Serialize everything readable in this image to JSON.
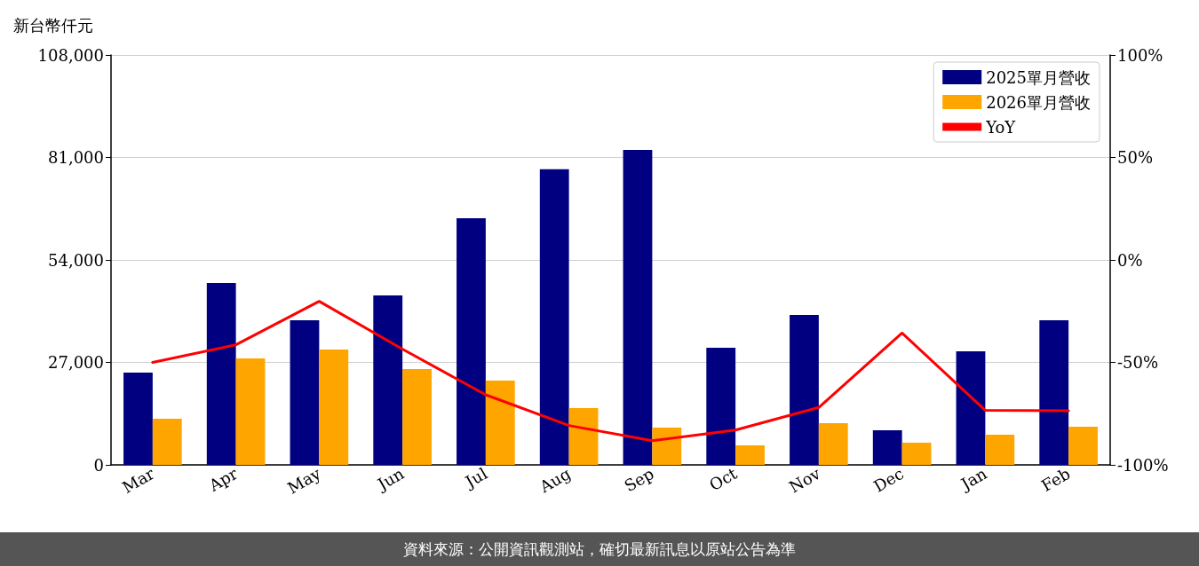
{
  "chart_data": {
    "type": "bar",
    "ylabel": "新台幣仟元",
    "categories": [
      "Mar",
      "Apr",
      "May",
      "Jun",
      "Jul",
      "Aug",
      "Sep",
      "Oct",
      "Nov",
      "Dec",
      "Jan",
      "Feb"
    ],
    "series": [
      {
        "name": "2025單月營收",
        "color": "#000080",
        "values": [
          24300,
          47900,
          38100,
          44650,
          65000,
          77900,
          83000,
          30860,
          39500,
          9100,
          29900,
          38100
        ]
      },
      {
        "name": "2026單月營收",
        "color": "#ffa500",
        "values": [
          12150,
          28050,
          30400,
          25250,
          22200,
          14960,
          9800,
          5140,
          11000,
          5850,
          7950,
          10050
        ]
      },
      {
        "name": "YoY",
        "type": "line",
        "axis": "y2",
        "color": "#ff0000",
        "marker": "none",
        "line_style": "solid",
        "values": [
          -50,
          -41.4,
          -20.2,
          -43.5,
          -65.8,
          -80.8,
          -88.2,
          -83,
          -72,
          -35.7,
          -73.4,
          -73.6
        ]
      }
    ],
    "ylim": [
      0,
      108000
    ],
    "yticks": [
      0,
      {
        "value": 27000,
        "label": "27,000"
      },
      {
        "value": 54000,
        "label": "54,000"
      },
      {
        "value": 81000,
        "label": "81,000"
      },
      {
        "value": 108000,
        "label": "108,000"
      }
    ],
    "y2lim": [
      -100,
      100
    ],
    "y2ticks": [
      {
        "value": -100,
        "label": "-100%"
      },
      {
        "value": -50,
        "label": "-50%"
      },
      {
        "value": 0,
        "label": "0%"
      },
      {
        "value": 50,
        "label": "50%"
      },
      {
        "value": 100,
        "label": "100%"
      }
    ],
    "grid": "y",
    "legend": "top right",
    "annotations": [
      "資料來源：公開資訊觀測站，確切最新訊息以原站公告為準"
    ]
  }
}
